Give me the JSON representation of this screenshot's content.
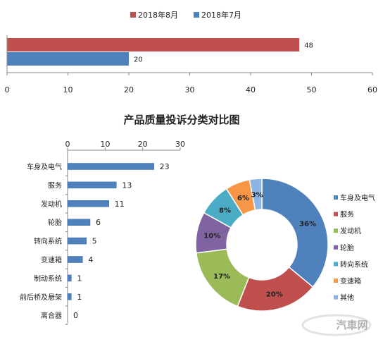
{
  "chart_data": [
    {
      "type": "bar",
      "orientation": "horizontal",
      "series": [
        {
          "name": "2018年8月",
          "values": [
            48
          ],
          "color": "#c0504d"
        },
        {
          "name": "2018年7月",
          "values": [
            20
          ],
          "color": "#4f81bd"
        }
      ],
      "xlim": [
        0,
        60
      ],
      "xticks": [
        "0",
        "10",
        "20",
        "30",
        "40",
        "50",
        "60"
      ],
      "legend_position": "top",
      "grid": false
    },
    {
      "type": "bar",
      "orientation": "horizontal",
      "title": "产品质量投诉分类对比图",
      "categories": [
        "车身及电气",
        "服务",
        "发动机",
        "轮胎",
        "转向系统",
        "变速箱",
        "制动系统",
        "前后桥及悬架",
        "离合器"
      ],
      "values": [
        23,
        13,
        11,
        6,
        5,
        4,
        1,
        1,
        0
      ],
      "color": "#4f81bd",
      "xlim": [
        0,
        30
      ],
      "xticks": [
        "0",
        "10",
        "20",
        "30"
      ],
      "axis_position": "top",
      "grid": false
    },
    {
      "type": "pie",
      "style": "donut",
      "slices": [
        {
          "label": "车身及电气",
          "value": 36,
          "display": "36%",
          "color": "#4f81bd"
        },
        {
          "label": "服务",
          "value": 20,
          "display": "20%",
          "color": "#c0504d"
        },
        {
          "label": "发动机",
          "value": 17,
          "display": "17%",
          "color": "#9bbb59"
        },
        {
          "label": "轮胎",
          "value": 10,
          "display": "10%",
          "color": "#8064a2"
        },
        {
          "label": "转向系统",
          "value": 8,
          "display": "8%",
          "color": "#4bacc6"
        },
        {
          "label": "变速箱",
          "value": 6,
          "display": "6%",
          "color": "#f79646"
        },
        {
          "label": "其他",
          "value": 3,
          "display": "3%",
          "color": "#8eb4e3"
        }
      ],
      "legend_position": "right"
    }
  ],
  "watermark": "汽車网"
}
